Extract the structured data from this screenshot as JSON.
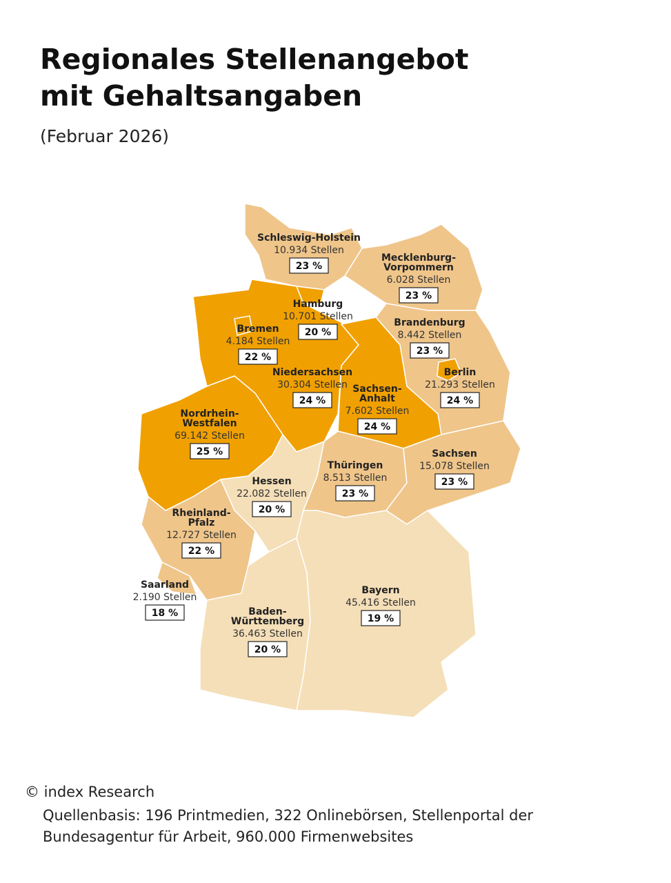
{
  "header": {
    "title_lines": [
      "Regionales Stellenangebot",
      "mit Gehaltsangaben"
    ],
    "subtitle": "(Februar 2026)"
  },
  "regions": [
    {
      "name_lines": [
        "Schleswig-Holstein"
      ],
      "jobs": "10.934 Stellen",
      "share": "23 %",
      "color": "#efc58a"
    },
    {
      "name_lines": [
        "Mecklenburg-",
        "Vorpommern"
      ],
      "jobs": "6.028 Stellen",
      "share": "23 %",
      "color": "#efc58a"
    },
    {
      "name_lines": [
        "Niedersachsen"
      ],
      "jobs": "30.304 Stellen",
      "share": "24 %",
      "color": "#f0a000"
    },
    {
      "name_lines": [
        "Hamburg"
      ],
      "jobs": "10.701 Stellen",
      "share": "20 %",
      "color": "#f0a000"
    },
    {
      "name_lines": [
        "Bremen"
      ],
      "jobs": "4.184 Stellen",
      "share": "22 %",
      "color": "#f0a000"
    },
    {
      "name_lines": [
        "Brandenburg"
      ],
      "jobs": "8.442 Stellen",
      "share": "23 %",
      "color": "#efc58a"
    },
    {
      "name_lines": [
        "Berlin"
      ],
      "jobs": "21.293 Stellen",
      "share": "24 %",
      "color": "#f0a000"
    },
    {
      "name_lines": [
        "Sachsen-",
        "Anhalt"
      ],
      "jobs": "7.602 Stellen",
      "share": "24 %",
      "color": "#f0a000"
    },
    {
      "name_lines": [
        "Nordrhein-",
        "Westfalen"
      ],
      "jobs": "69.142 Stellen",
      "share": "25 %",
      "color": "#f0a000"
    },
    {
      "name_lines": [
        "Hessen"
      ],
      "jobs": "22.082 Stellen",
      "share": "20 %",
      "color": "#f5dfb8"
    },
    {
      "name_lines": [
        "Thüringen"
      ],
      "jobs": "8.513 Stellen",
      "share": "23 %",
      "color": "#efc58a"
    },
    {
      "name_lines": [
        "Sachsen"
      ],
      "jobs": "15.078 Stellen",
      "share": "23 %",
      "color": "#efc58a"
    },
    {
      "name_lines": [
        "Rheinland-",
        "Pfalz"
      ],
      "jobs": "12.727 Stellen",
      "share": "22 %",
      "color": "#efc58a"
    },
    {
      "name_lines": [
        "Saarland"
      ],
      "jobs": "2.190 Stellen",
      "share": "18 %",
      "color": "#efc58a"
    },
    {
      "name_lines": [
        "Baden-",
        "Württemberg"
      ],
      "jobs": "36.463 Stellen",
      "share": "20 %",
      "color": "#f5dfb8"
    },
    {
      "name_lines": [
        "Bayern"
      ],
      "jobs": "45.416 Stellen",
      "share": "19 %",
      "color": "#f5dfb8"
    }
  ],
  "footer": {
    "copyright": "© index Research",
    "source_lines": [
      "Quellenbasis: 196 Printmedien, 322 Onlinebörsen, Stellenportal der",
      "Bundesagentur für Arbeit, 960.000 Firmenwebsites"
    ]
  }
}
